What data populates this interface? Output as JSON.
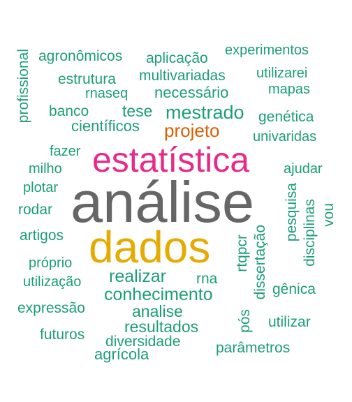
{
  "colors": {
    "background": "#ffffff",
    "teal": "#1b9e77",
    "orange": "#d95f02",
    "magenta": "#e7298a",
    "gray": "#666666",
    "gold": "#e6ab02"
  },
  "words": {
    "analise_main": "análise",
    "dados": "dados",
    "estatistica": "estatística",
    "projeto": "projeto",
    "mestrado": "mestrado",
    "realizar": "realizar",
    "conhecimento": "conhecimento",
    "analise": "analise",
    "resultados": "resultados",
    "diversidade": "diversidade",
    "agricola": "agrícola",
    "cientificos": "científicos",
    "tese": "tese",
    "necessario": "necessário",
    "multivariadas": "multivariadas",
    "estrutura": "estrutura",
    "rnaseq": "rnaseq",
    "banco": "banco",
    "agronomicos": "agronômicos",
    "aplicacao": "aplicação",
    "experimentos": "experimentos",
    "utilizarei": "utilizarei",
    "mapas": "mapas",
    "genetica": "genética",
    "univaridas": "univaridas",
    "ajudar": "ajudar",
    "fazer": "fazer",
    "milho": "milho",
    "plotar": "plotar",
    "rodar": "rodar",
    "artigos": "artigos",
    "proprio": "próprio",
    "utilizacao": "utilização",
    "expressao": "expressão",
    "futuros": "futuros",
    "rna": "rna",
    "genica": "gênica",
    "utilizar": "utilizar",
    "parametros": "parâmetros",
    "profissional": "profissional",
    "pesquisa": "pesquisa",
    "disciplinas": "disciplinas",
    "vou": "vou",
    "rtqpcr": "rtqpcr",
    "dissertacao": "dissertação",
    "pos": "pós"
  }
}
